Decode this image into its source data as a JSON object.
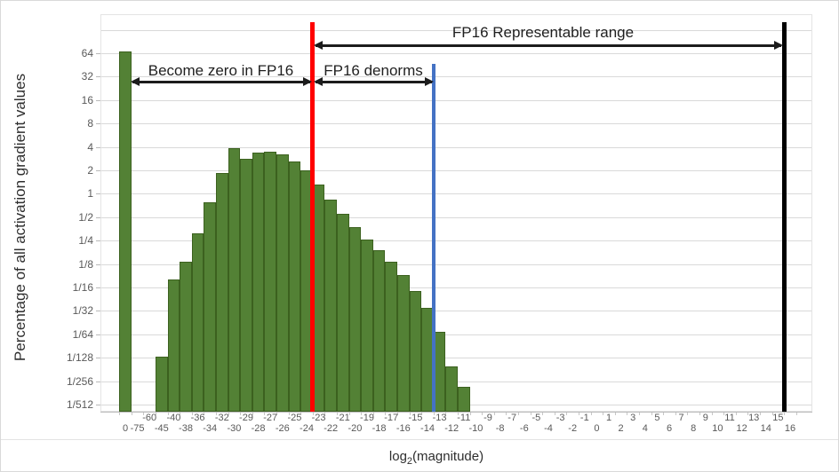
{
  "chart_data": {
    "type": "bar",
    "title": "",
    "xlabel": "log2(magnitude)",
    "xlabel_parts": {
      "prefix": "log",
      "sub": "2",
      "suffix": "(magnitude)"
    },
    "ylabel": "Percentage of all activation gradient values",
    "y_scale": "log2",
    "ylim_log2": [
      -9,
      7
    ],
    "grid": true,
    "legend": false,
    "y_tick_labels": [
      "64",
      "32",
      "16",
      "8",
      "4",
      "2",
      "1",
      "1/2",
      "1/4",
      "1/8",
      "1/16",
      "1/32",
      "1/64",
      "1/128",
      "1/256",
      "1/512"
    ],
    "categories": [
      "0",
      "-75",
      "-60",
      "-45",
      "-40",
      "-38",
      "-36",
      "-34",
      "-32",
      "-30",
      "-29",
      "-28",
      "-27",
      "-26",
      "-25",
      "-24",
      "-23",
      "-22",
      "-21",
      "-20",
      "-19",
      "-18",
      "-17",
      "-16",
      "-15",
      "-14",
      "-13",
      "-12",
      "-11",
      "-10",
      "-9",
      "-8",
      "-7",
      "-6",
      "-5",
      "-4",
      "-3",
      "-2",
      "-1",
      "0",
      "1",
      "2",
      "3",
      "4",
      "5",
      "6",
      "7",
      "8",
      "9",
      "10",
      "11",
      "12",
      "13",
      "14",
      "15",
      "16"
    ],
    "values": [
      67,
      0,
      0,
      0.008,
      0.08,
      0.135,
      0.31,
      0.78,
      1.85,
      3.9,
      2.85,
      3.4,
      3.5,
      3.25,
      2.6,
      2.0,
      1.3,
      0.85,
      0.55,
      0.37,
      0.26,
      0.19,
      0.135,
      0.09,
      0.057,
      0.034,
      0.017,
      0.006,
      0.0033,
      0,
      0,
      0,
      0,
      0,
      0,
      0,
      0,
      0,
      0,
      0,
      0,
      0,
      0,
      0,
      0,
      0,
      0,
      0,
      0,
      0,
      0,
      0,
      0,
      0,
      0,
      0
    ],
    "bar_color": "#538135",
    "bar_border_color": "#3c611f",
    "marker_lines": [
      {
        "name": "fp16-zero-cutoff-line",
        "color": "#ff0000",
        "after_category": "-24",
        "after_index": 15
      },
      {
        "name": "fp16-denorm-boundary-line",
        "color": "#4472c4",
        "after_category": "-14",
        "after_index": 25
      },
      {
        "name": "fp16-max-line",
        "color": "#000000",
        "after_category": "15",
        "after_index": 54
      }
    ],
    "annotations": [
      {
        "name": "fp16-representable-range",
        "text": "FP16 Representable range"
      },
      {
        "name": "become-zero",
        "text": "Become zero in FP16"
      },
      {
        "name": "fp16-denorms",
        "text": "FP16 denorms"
      }
    ]
  }
}
